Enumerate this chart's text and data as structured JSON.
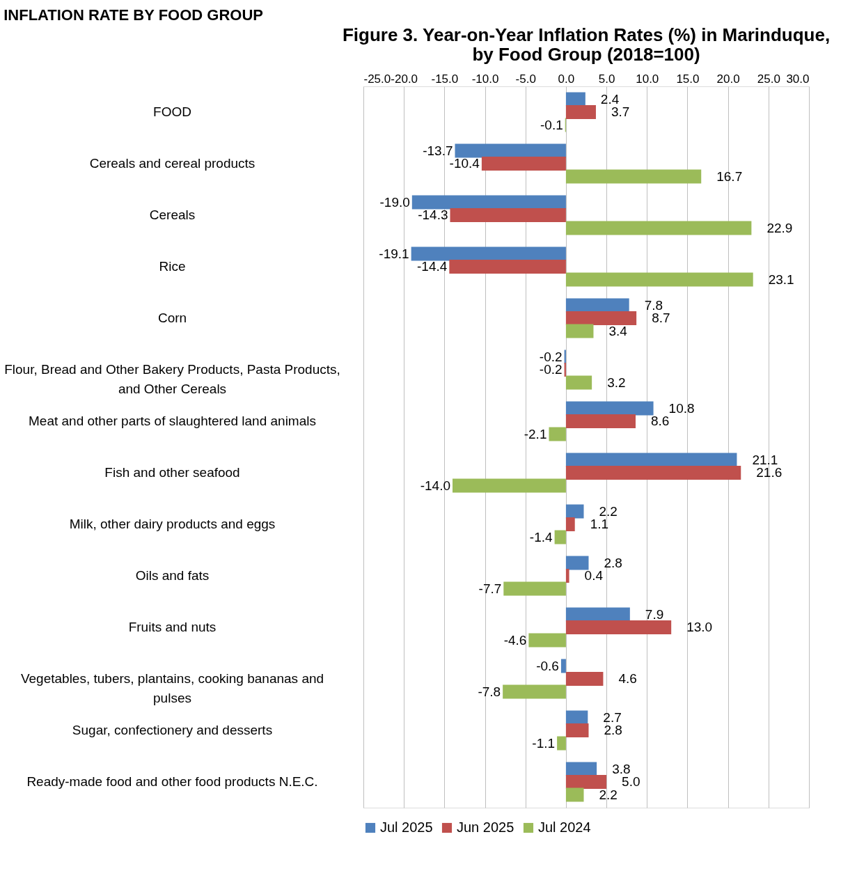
{
  "chart_data": {
    "type": "bar",
    "orientation": "horizontal",
    "title": [
      "Figure 3. Year-on-Year Inflation Rates (%) in Marinduque,",
      "by Food Group (2018=100)"
    ],
    "annotations": [
      "INFLATION RATE BY FOOD GROUP"
    ],
    "categories": [
      "FOOD",
      "Cereals and cereal products",
      "Cereals",
      "Rice",
      "Corn",
      "Flour, Bread and Other Bakery Products, Pasta Products,  and Other Cereals",
      "Meat and other parts of slaughtered land animals",
      "Fish and other seafood",
      "Milk, other dairy products and eggs",
      "Oils and fats",
      "Fruits and nuts",
      "Vegetables, tubers, plantains, cooking bananas and pulses",
      "Sugar, confectionery and desserts",
      "Ready-made food and other food products N.E.C."
    ],
    "series": [
      {
        "name": "Jul 2025",
        "color": "#4f81bd",
        "values": [
          2.4,
          -13.7,
          -19.0,
          -19.1,
          7.8,
          -0.2,
          10.8,
          21.1,
          2.2,
          2.8,
          7.9,
          -0.6,
          2.7,
          3.8
        ],
        "value_labels": [
          "2.4",
          "-13.7",
          "-19.0",
          "-19.1",
          "7.8",
          "-0.2",
          "10.8",
          "21.1",
          "2.2",
          "2.8",
          "7.9",
          "-0.6",
          "2.7",
          "3.8"
        ]
      },
      {
        "name": "Jun 2025",
        "color": "#c0504d",
        "values": [
          3.7,
          -10.4,
          -14.3,
          -14.4,
          8.7,
          -0.2,
          8.6,
          21.6,
          1.1,
          0.4,
          13.0,
          4.6,
          2.8,
          5.0
        ],
        "value_labels": [
          "3.7",
          "-10.4",
          "-14.3",
          "-14.4",
          "8.7",
          "-0.2",
          "8.6",
          "21.6",
          "1.1",
          "0.4",
          "13.0",
          "4.6",
          "2.8",
          "5.0"
        ]
      },
      {
        "name": "Jul 2024",
        "color": "#9bbb59",
        "values": [
          -0.1,
          16.7,
          22.9,
          23.1,
          3.4,
          3.2,
          -2.1,
          -14.0,
          -1.4,
          -7.7,
          -4.6,
          -7.8,
          -1.1,
          2.2
        ],
        "value_labels": [
          "-0.1",
          "16.7",
          "22.9",
          "23.1",
          "3.4",
          "3.2",
          "-2.1",
          "-14.0",
          "-1.4",
          "-7.7",
          "-4.6",
          "-7.8",
          "-1.1",
          "2.2"
        ]
      }
    ],
    "xlim": [
      -25,
      30
    ],
    "xticks": [
      {
        "value": -25,
        "label": "-25.0"
      },
      {
        "value": -20,
        "label": "-20.0"
      },
      {
        "value": -15,
        "label": "-15.0"
      },
      {
        "value": -10,
        "label": "-10.0"
      },
      {
        "value": -5,
        "label": "-5.0"
      },
      {
        "value": 0,
        "label": "0.0"
      },
      {
        "value": 5,
        "label": "5.0"
      },
      {
        "value": 10,
        "label": "10.0"
      },
      {
        "value": 15,
        "label": "15.0"
      },
      {
        "value": 20,
        "label": "20.0"
      },
      {
        "value": 25,
        "label": "25.0"
      },
      {
        "value": 30,
        "label": "30.0"
      }
    ],
    "grid": "x",
    "legend": "bottom"
  }
}
